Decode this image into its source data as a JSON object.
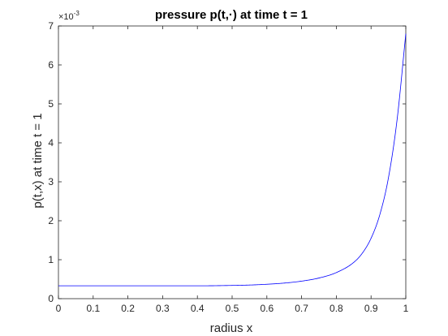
{
  "chart_data": {
    "type": "line",
    "title": "pressure p(t,·) at time  t = 1",
    "xlabel": "radius x",
    "ylabel": "p(t,x) at time t = 1",
    "y_exponent_base": "×10",
    "y_exponent_power": "-3",
    "xlim": [
      0,
      1
    ],
    "ylim": [
      0,
      7
    ],
    "xticks": [
      "0",
      "0.1",
      "0.2",
      "0.3",
      "0.4",
      "0.5",
      "0.6",
      "0.7",
      "0.8",
      "0.9",
      "1"
    ],
    "yticks": [
      "0",
      "1",
      "2",
      "3",
      "4",
      "5",
      "6",
      "7"
    ],
    "grid": false,
    "line_color": "#0000ff",
    "series": [
      {
        "x": [
          0,
          0.1,
          0.2,
          0.3,
          0.4,
          0.5,
          0.55,
          0.6,
          0.65,
          0.7,
          0.75,
          0.8,
          0.85,
          0.875,
          0.9,
          0.925,
          0.95,
          0.975,
          1.0
        ],
        "y": [
          0.33,
          0.33,
          0.33,
          0.33,
          0.33,
          0.34,
          0.35,
          0.37,
          0.4,
          0.45,
          0.53,
          0.67,
          0.93,
          1.17,
          1.55,
          2.15,
          3.1,
          4.6,
          6.8
        ]
      }
    ]
  }
}
